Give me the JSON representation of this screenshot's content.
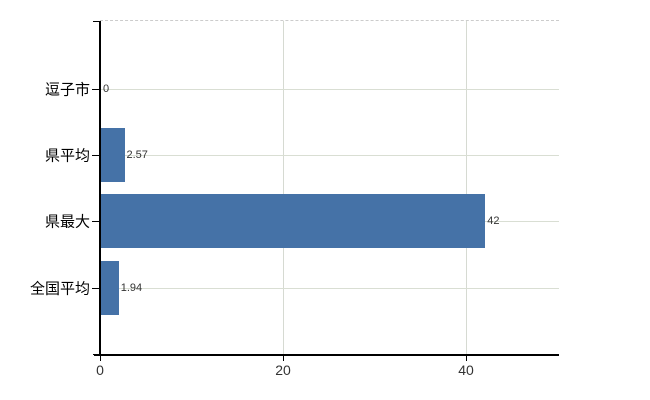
{
  "chart_data": {
    "type": "bar",
    "orientation": "horizontal",
    "title": "",
    "categories": [
      "逗子市",
      "県平均",
      "県最大",
      "全国平均"
    ],
    "values": [
      0,
      2.57,
      42,
      1.94
    ],
    "value_labels": [
      "0",
      "2.57",
      "42",
      "1.94"
    ],
    "xtick_labels": [
      "0",
      "20",
      "40"
    ],
    "xtick_values": [
      0,
      20,
      40
    ],
    "xlim": [
      0,
      50.2
    ],
    "grid": "on",
    "legend": "none",
    "colors": {
      "bar": "#4572a7",
      "axis": "#000000",
      "gridline_horizontal": "#d9ded3",
      "gridline_vertical": "#d6dad2",
      "plot_top_border": "#cccccc",
      "tick_mark": "#000000",
      "category_label": "#000000",
      "value_label": "#333333",
      "tick_label": "#333333",
      "background": "#ffffff"
    }
  }
}
